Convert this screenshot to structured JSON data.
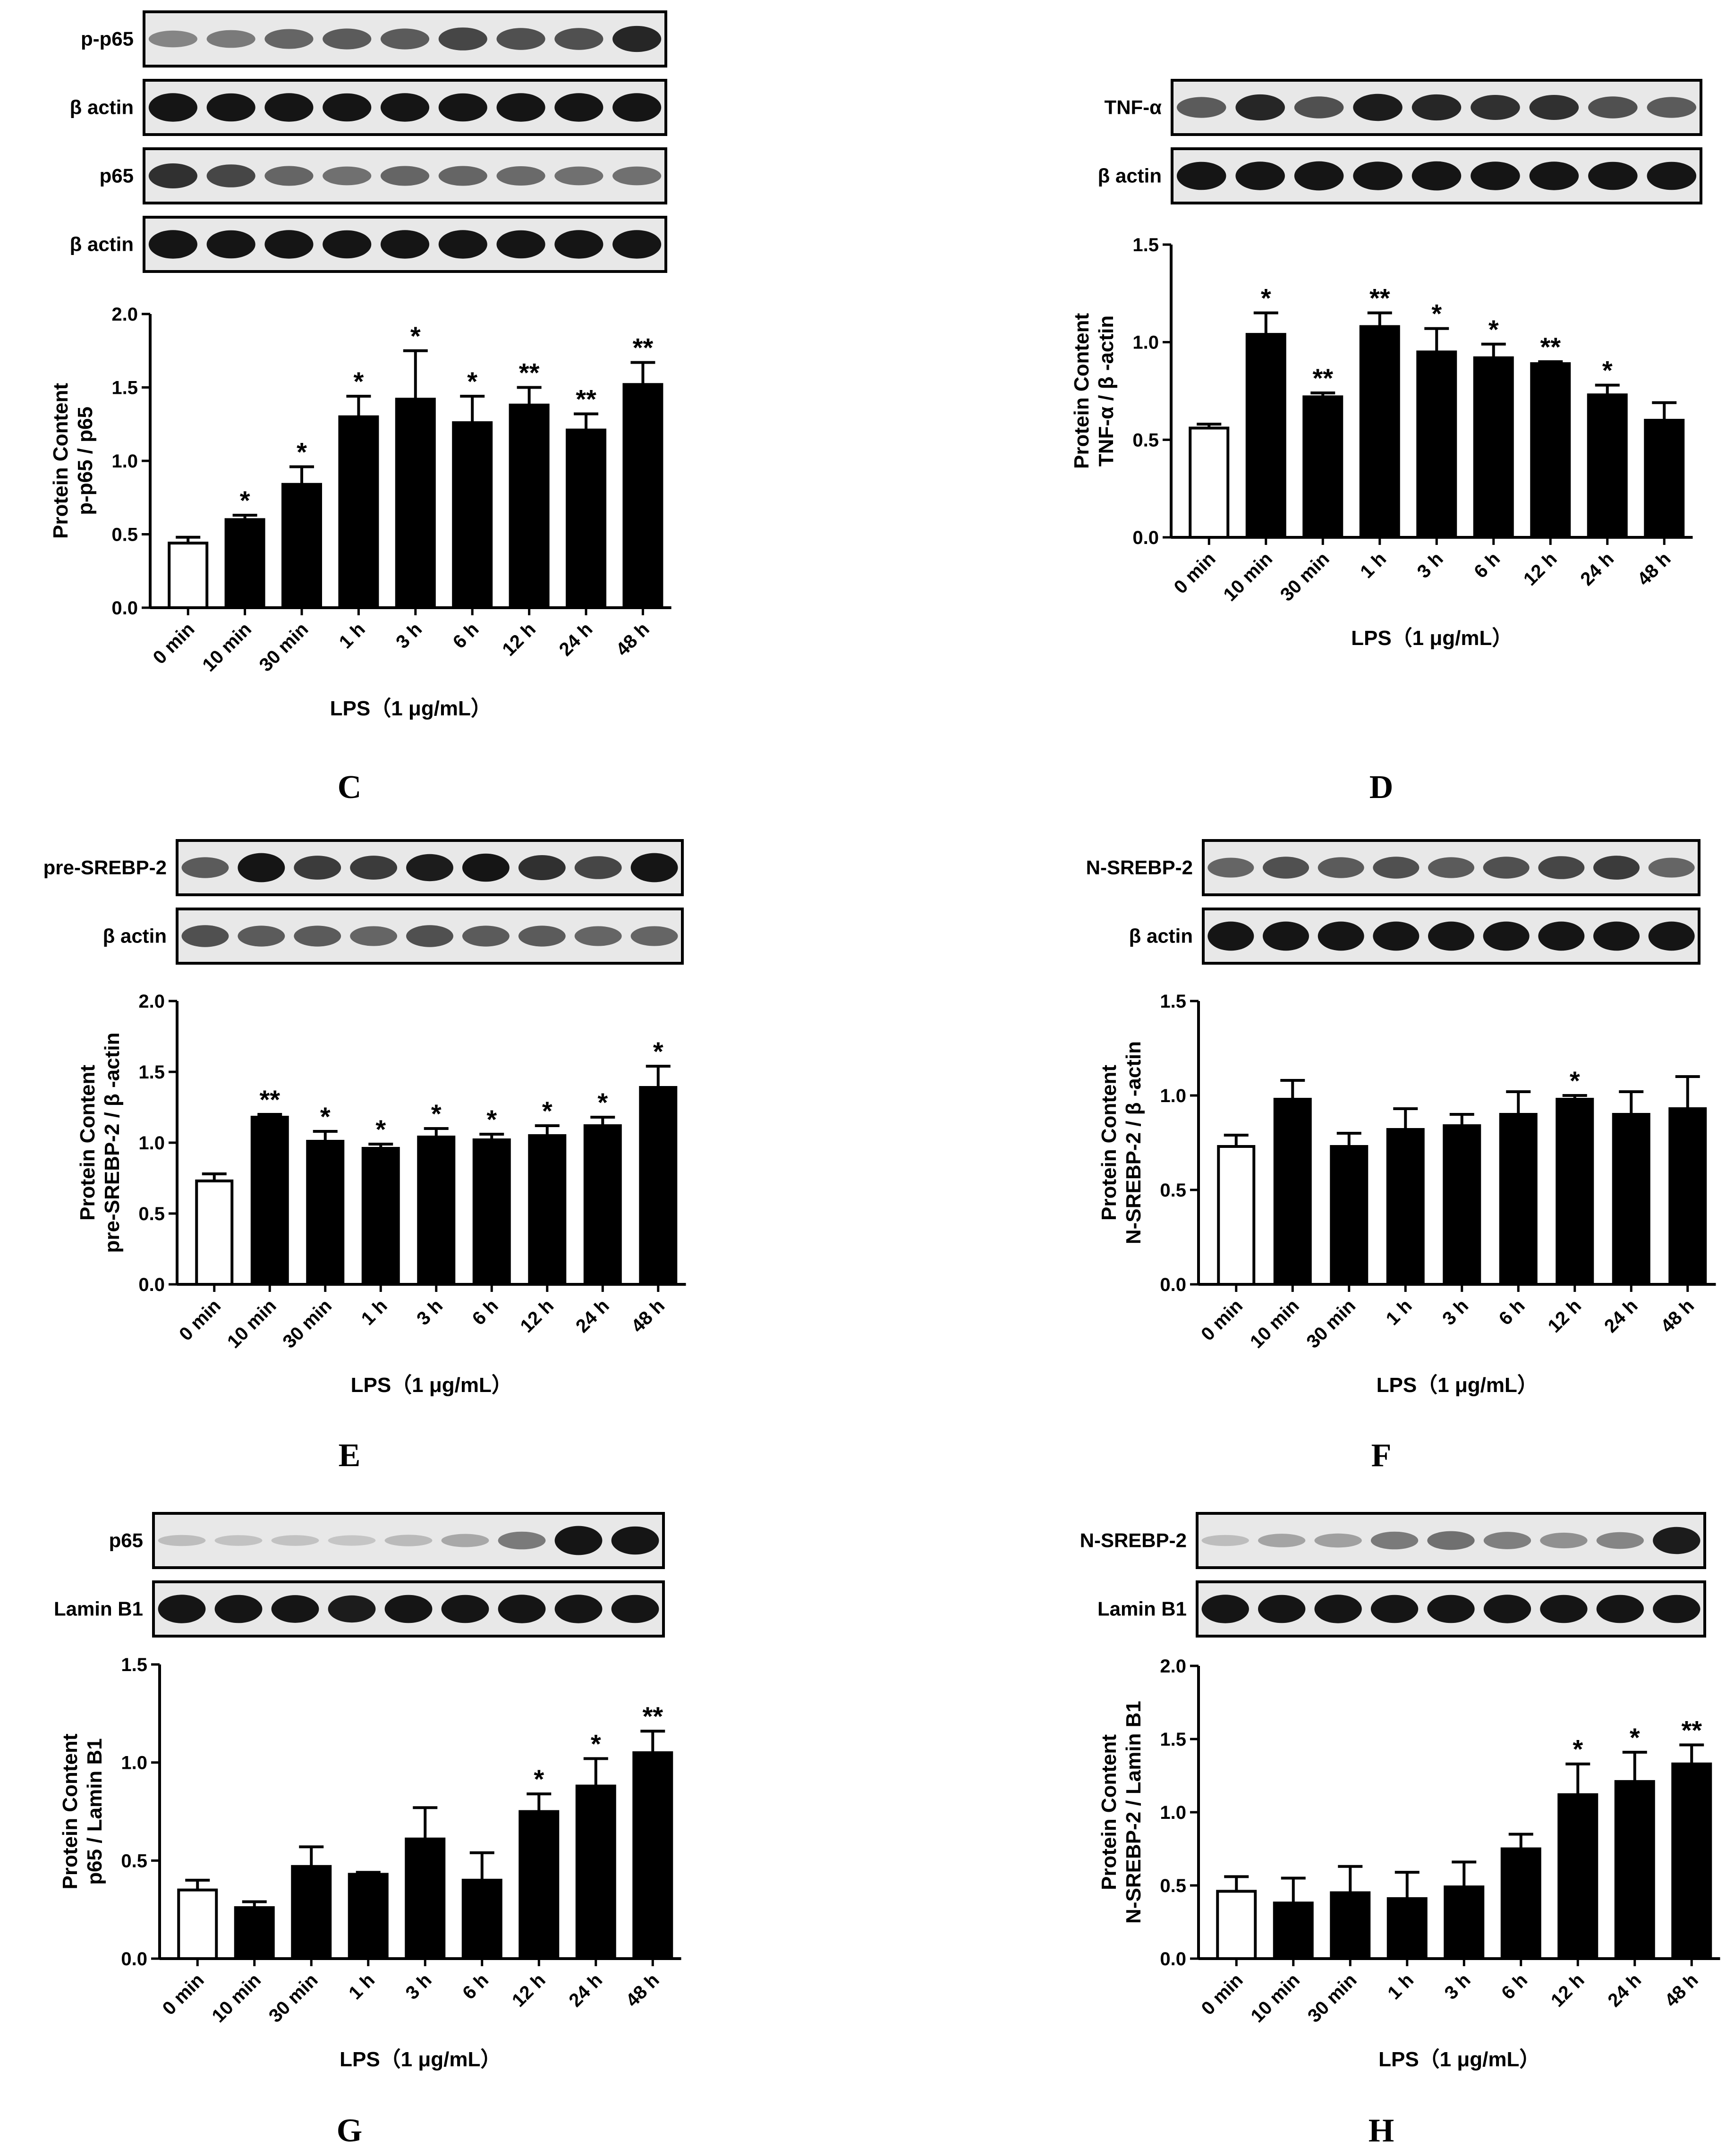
{
  "figure": {
    "panel_letters": [
      "C",
      "D",
      "E",
      "F",
      "G",
      "H"
    ]
  },
  "colors": {
    "bar_fill": "#000000",
    "control_fill": "#ffffff",
    "axis": "#000000",
    "blot_background": "#e8e8e8",
    "band": "#151515"
  },
  "chart_data": [
    {
      "panel": "C",
      "type": "bar",
      "blots": [
        {
          "label": "p-p65",
          "intensity": [
            0.35,
            0.4,
            0.5,
            0.55,
            0.55,
            0.65,
            0.6,
            0.6,
            0.8
          ]
        },
        {
          "label": "β actin",
          "intensity": [
            0.92,
            0.9,
            0.92,
            0.9,
            0.92,
            0.9,
            0.92,
            0.92,
            0.92
          ]
        },
        {
          "label": "p65",
          "intensity": [
            0.75,
            0.65,
            0.5,
            0.45,
            0.5,
            0.5,
            0.48,
            0.45,
            0.45
          ]
        },
        {
          "label": "β actin",
          "intensity": [
            0.92,
            0.9,
            0.92,
            0.9,
            0.92,
            0.92,
            0.9,
            0.92,
            0.92
          ]
        }
      ],
      "categories": [
        "0 min",
        "10 min",
        "30 min",
        "1 h",
        "3 h",
        "6 h",
        "12 h",
        "24 h",
        "48 h"
      ],
      "values": [
        0.44,
        0.6,
        0.84,
        1.3,
        1.42,
        1.26,
        1.38,
        1.21,
        1.52
      ],
      "errors": [
        0.04,
        0.03,
        0.12,
        0.14,
        0.33,
        0.18,
        0.12,
        0.11,
        0.15
      ],
      "significance": [
        "",
        "*",
        "*",
        "*",
        "*",
        "*",
        "**",
        "**",
        "**"
      ],
      "ylabel": [
        "Protein Content",
        "p-p65 / p65"
      ],
      "xlabel": "LPS（1 μg/mL）",
      "ylim": [
        0,
        2.0
      ],
      "yticks": [
        "0.0",
        "0.5",
        "1.0",
        "1.5",
        "2.0"
      ]
    },
    {
      "panel": "D",
      "type": "bar",
      "blots": [
        {
          "label": "TNF-α",
          "intensity": [
            0.55,
            0.8,
            0.6,
            0.85,
            0.8,
            0.75,
            0.75,
            0.6,
            0.55
          ]
        },
        {
          "label": "β actin",
          "intensity": [
            0.9,
            0.92,
            0.95,
            0.92,
            0.95,
            0.92,
            0.92,
            0.9,
            0.9
          ]
        }
      ],
      "categories": [
        "0 min",
        "10 min",
        "30 min",
        "1 h",
        "3 h",
        "6 h",
        "12 h",
        "24 h",
        "48 h"
      ],
      "values": [
        0.56,
        1.04,
        0.72,
        1.08,
        0.95,
        0.92,
        0.89,
        0.73,
        0.6
      ],
      "errors": [
        0.02,
        0.11,
        0.02,
        0.07,
        0.12,
        0.07,
        0.01,
        0.05,
        0.09
      ],
      "significance": [
        "",
        "*",
        "**",
        "**",
        "*",
        "*",
        "**",
        "*",
        ""
      ],
      "ylabel": [
        "Protein Content",
        "TNF-α  / β -actin"
      ],
      "xlabel": "LPS（1 μg/mL）",
      "ylim": [
        0,
        1.5
      ],
      "yticks": [
        "0.0",
        "0.5",
        "1.0",
        "1.5"
      ]
    },
    {
      "panel": "E",
      "type": "bar",
      "blots": [
        {
          "label": "pre-SREBP-2",
          "intensity": [
            0.55,
            0.95,
            0.7,
            0.7,
            0.85,
            0.9,
            0.75,
            0.65,
            0.95
          ]
        },
        {
          "label": "β actin",
          "intensity": [
            0.6,
            0.55,
            0.55,
            0.5,
            0.6,
            0.55,
            0.55,
            0.5,
            0.5
          ]
        }
      ],
      "categories": [
        "0 min",
        "10 min",
        "30 min",
        "1 h",
        "3 h",
        "6 h",
        "12 h",
        "24 h",
        "48 h"
      ],
      "values": [
        0.73,
        1.18,
        1.01,
        0.96,
        1.04,
        1.02,
        1.05,
        1.12,
        1.39
      ],
      "errors": [
        0.05,
        0.02,
        0.07,
        0.03,
        0.06,
        0.04,
        0.07,
        0.06,
        0.15
      ],
      "significance": [
        "",
        "**",
        "*",
        "*",
        "*",
        "*",
        "*",
        "*",
        "*"
      ],
      "ylabel": [
        "Protein Content",
        "pre-SREBP-2 / β -actin"
      ],
      "xlabel": "LPS（1 μg/mL）",
      "ylim": [
        0,
        2.0
      ],
      "yticks": [
        "0.0",
        "0.5",
        "1.0",
        "1.5",
        "2.0"
      ]
    },
    {
      "panel": "F",
      "type": "bar",
      "blots": [
        {
          "label": "N-SREBP-2",
          "intensity": [
            0.5,
            0.6,
            0.55,
            0.6,
            0.55,
            0.6,
            0.65,
            0.7,
            0.5
          ]
        },
        {
          "label": "β actin",
          "intensity": [
            0.95,
            0.95,
            0.95,
            0.95,
            0.95,
            0.95,
            0.95,
            0.95,
            0.95
          ]
        }
      ],
      "categories": [
        "0 min",
        "10 min",
        "30 min",
        "1 h",
        "3 h",
        "6 h",
        "12 h",
        "24 h",
        "48 h"
      ],
      "values": [
        0.73,
        0.98,
        0.73,
        0.82,
        0.84,
        0.9,
        0.98,
        0.9,
        0.93
      ],
      "errors": [
        0.06,
        0.1,
        0.07,
        0.11,
        0.06,
        0.12,
        0.02,
        0.12,
        0.17
      ],
      "significance": [
        "",
        "",
        "",
        "",
        "",
        "",
        "*",
        "",
        ""
      ],
      "ylabel": [
        "Protein Content",
        "N-SREBP-2 / β -actin"
      ],
      "xlabel": "LPS（1 μg/mL）",
      "ylim": [
        0,
        1.5
      ],
      "yticks": [
        "0.0",
        "0.5",
        "1.0",
        "1.5"
      ]
    },
    {
      "panel": "G",
      "type": "bar",
      "blots": [
        {
          "label": "p65",
          "intensity": [
            0.08,
            0.06,
            0.06,
            0.05,
            0.1,
            0.18,
            0.4,
            0.95,
            0.9
          ]
        },
        {
          "label": "Lamin B1",
          "intensity": [
            0.92,
            0.9,
            0.88,
            0.85,
            0.9,
            0.9,
            0.92,
            0.92,
            0.9
          ]
        }
      ],
      "categories": [
        "0 min",
        "10 min",
        "30 min",
        "1 h",
        "3 h",
        "6 h",
        "12 h",
        "24 h",
        "48 h"
      ],
      "values": [
        0.35,
        0.26,
        0.47,
        0.43,
        0.61,
        0.4,
        0.75,
        0.88,
        1.05
      ],
      "errors": [
        0.05,
        0.03,
        0.1,
        0.01,
        0.16,
        0.14,
        0.09,
        0.14,
        0.11
      ],
      "significance": [
        "",
        "",
        "",
        "",
        "",
        "",
        "*",
        "*",
        "**"
      ],
      "ylabel": [
        "Protein Content",
        "p65 / Lamin B1"
      ],
      "xlabel": "LPS（1 μg/mL）",
      "ylim": [
        0,
        1.5
      ],
      "yticks": [
        "0.0",
        "0.5",
        "1.0",
        "1.5"
      ]
    },
    {
      "panel": "H",
      "type": "bar",
      "blots": [
        {
          "label": "N-SREBP-2",
          "intensity": [
            0.08,
            0.2,
            0.22,
            0.4,
            0.45,
            0.38,
            0.3,
            0.35,
            0.85
          ]
        },
        {
          "label": "Lamin B1",
          "intensity": [
            0.92,
            0.9,
            0.92,
            0.9,
            0.9,
            0.92,
            0.9,
            0.9,
            0.9
          ]
        }
      ],
      "categories": [
        "0 min",
        "10 min",
        "30 min",
        "1 h",
        "3 h",
        "6 h",
        "12 h",
        "24 h",
        "48 h"
      ],
      "values": [
        0.46,
        0.38,
        0.45,
        0.41,
        0.49,
        0.75,
        1.12,
        1.21,
        1.33
      ],
      "errors": [
        0.1,
        0.17,
        0.18,
        0.18,
        0.17,
        0.1,
        0.21,
        0.2,
        0.13
      ],
      "significance": [
        "",
        "",
        "",
        "",
        "",
        "",
        "*",
        "*",
        "**"
      ],
      "ylabel": [
        "Protein Content",
        "N-SREBP-2 / Lamin B1"
      ],
      "xlabel": "LPS（1 μg/mL）",
      "ylim": [
        0,
        2.0
      ],
      "yticks": [
        "0.0",
        "0.5",
        "1.0",
        "1.5",
        "2.0"
      ]
    }
  ]
}
